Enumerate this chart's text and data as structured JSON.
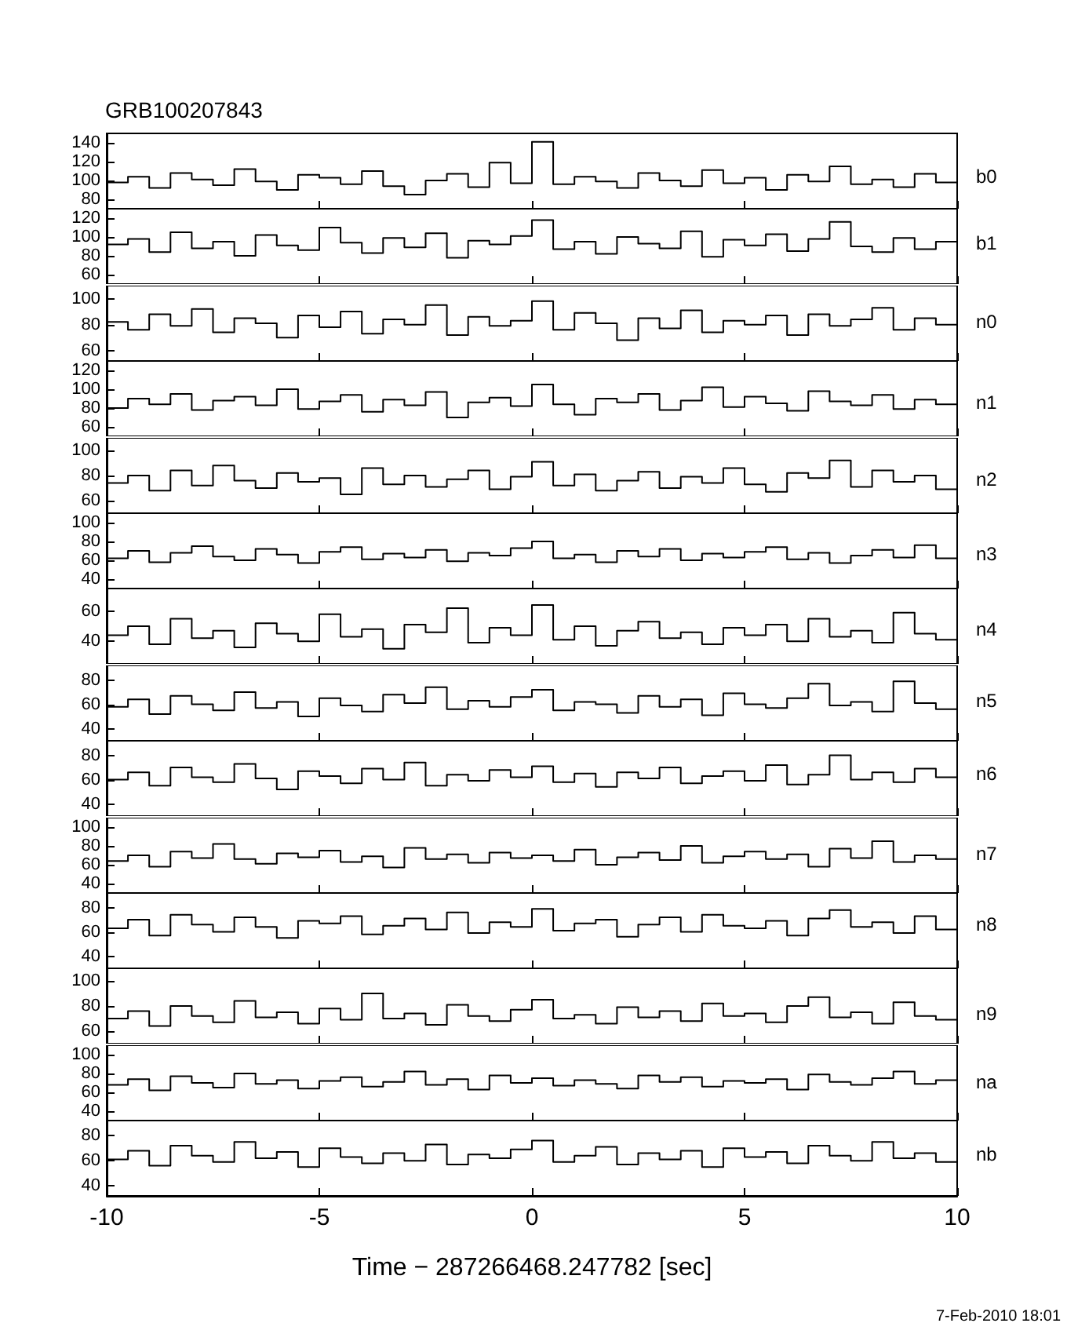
{
  "chart_data": [
    {
      "type": "step",
      "title": "GRB100207843",
      "x": [
        -10,
        -9.5,
        -9,
        -8.5,
        -8,
        -7.5,
        -7,
        -6.5,
        -6,
        -5.5,
        -5,
        -4.5,
        -4,
        -3.5,
        -3,
        -2.5,
        -2,
        -1.5,
        -1,
        -0.5,
        0,
        0.5,
        1,
        1.5,
        2,
        2.5,
        3,
        3.5,
        4,
        4.5,
        5,
        5.5,
        6,
        6.5,
        7,
        7.5,
        8,
        8.5,
        9,
        9.5,
        10
      ],
      "series": [
        {
          "name": "b0",
          "color": "#000000",
          "values": [
            98,
            104,
            92,
            108,
            101,
            95,
            112,
            99,
            90,
            106,
            103,
            96,
            110,
            94,
            85,
            100,
            107,
            93,
            119,
            97,
            141,
            96,
            104,
            99,
            92,
            108,
            100,
            94,
            111,
            97,
            103,
            90,
            106,
            99,
            115,
            96,
            101,
            93,
            107,
            98,
            104
          ]
        }
      ],
      "xlim": [
        -10,
        10
      ],
      "xticks": [
        -10,
        -5,
        0,
        5,
        10
      ],
      "ylim": [
        70,
        150
      ],
      "yticks": [
        80,
        100,
        120,
        140
      ],
      "tick_labels": "y",
      "marker": "none"
    },
    {
      "type": "step",
      "x": [
        -10,
        -9.5,
        -9,
        -8.5,
        -8,
        -7.5,
        -7,
        -6.5,
        -6,
        -5.5,
        -5,
        -4.5,
        -4,
        -3.5,
        -3,
        -2.5,
        -2,
        -1.5,
        -1,
        -0.5,
        0,
        0.5,
        1,
        1.5,
        2,
        2.5,
        3,
        3.5,
        4,
        4.5,
        5,
        5.5,
        6,
        6.5,
        7,
        7.5,
        8,
        8.5,
        9,
        9.5,
        10
      ],
      "series": [
        {
          "name": "b1",
          "color": "#000000",
          "values": [
            92,
            98,
            84,
            105,
            88,
            95,
            80,
            102,
            91,
            86,
            110,
            94,
            83,
            99,
            89,
            104,
            78,
            96,
            92,
            101,
            118,
            87,
            95,
            82,
            100,
            93,
            88,
            106,
            79,
            97,
            91,
            103,
            85,
            98,
            116,
            90,
            84,
            99,
            87,
            95,
            93
          ]
        }
      ],
      "xlim": [
        -10,
        10
      ],
      "xticks": [
        -10,
        -5,
        0,
        5,
        10
      ],
      "ylim": [
        50,
        130
      ],
      "yticks": [
        60,
        80,
        100,
        120
      ],
      "tick_labels": "y",
      "marker": "none"
    },
    {
      "type": "step",
      "x": [
        -10,
        -9.5,
        -9,
        -8.5,
        -8,
        -7.5,
        -7,
        -6.5,
        -6,
        -5.5,
        -5,
        -4.5,
        -4,
        -3.5,
        -3,
        -2.5,
        -2,
        -1.5,
        -1,
        -0.5,
        0,
        0.5,
        1,
        1.5,
        2,
        2.5,
        3,
        3.5,
        4,
        4.5,
        5,
        5.5,
        6,
        6.5,
        7,
        7.5,
        8,
        8.5,
        9,
        9.5,
        10
      ],
      "series": [
        {
          "name": "n0",
          "color": "#000000",
          "values": [
            82,
            76,
            88,
            79,
            92,
            74,
            85,
            81,
            70,
            87,
            78,
            90,
            73,
            84,
            80,
            95,
            72,
            86,
            79,
            83,
            98,
            76,
            89,
            81,
            68,
            85,
            77,
            91,
            74,
            83,
            80,
            87,
            72,
            88,
            79,
            84,
            93,
            76,
            85,
            80,
            82
          ]
        }
      ],
      "xlim": [
        -10,
        10
      ],
      "xticks": [
        -10,
        -5,
        0,
        5,
        10
      ],
      "ylim": [
        52,
        110
      ],
      "yticks": [
        60,
        80,
        100
      ],
      "tick_labels": "y",
      "marker": "none"
    },
    {
      "type": "step",
      "x": [
        -10,
        -9.5,
        -9,
        -8.5,
        -8,
        -7.5,
        -7,
        -6.5,
        -6,
        -5.5,
        -5,
        -4.5,
        -4,
        -3.5,
        -3,
        -2.5,
        -2,
        -1.5,
        -1,
        -0.5,
        0,
        0.5,
        1,
        1.5,
        2,
        2.5,
        3,
        3.5,
        4,
        4.5,
        5,
        5.5,
        6,
        6.5,
        7,
        7.5,
        8,
        8.5,
        9,
        9.5,
        10
      ],
      "series": [
        {
          "name": "n1",
          "color": "#000000",
          "values": [
            80,
            90,
            84,
            95,
            78,
            88,
            92,
            83,
            100,
            79,
            87,
            94,
            76,
            89,
            83,
            97,
            70,
            86,
            91,
            82,
            105,
            84,
            73,
            90,
            86,
            95,
            78,
            88,
            102,
            81,
            92,
            85,
            77,
            98,
            87,
            83,
            94,
            79,
            89,
            84,
            86
          ]
        }
      ],
      "xlim": [
        -10,
        10
      ],
      "xticks": [
        -10,
        -5,
        0,
        5,
        10
      ],
      "ylim": [
        50,
        130
      ],
      "yticks": [
        60,
        80,
        100,
        120
      ],
      "tick_labels": "y",
      "marker": "none"
    },
    {
      "type": "step",
      "x": [
        -10,
        -9.5,
        -9,
        -8.5,
        -8,
        -7.5,
        -7,
        -6.5,
        -6,
        -5.5,
        -5,
        -4.5,
        -4,
        -3.5,
        -3,
        -2.5,
        -2,
        -1.5,
        -1,
        -0.5,
        0,
        0.5,
        1,
        1.5,
        2,
        2.5,
        3,
        3.5,
        4,
        4.5,
        5,
        5.5,
        6,
        6.5,
        7,
        7.5,
        8,
        8.5,
        9,
        9.5,
        10
      ],
      "series": [
        {
          "name": "n2",
          "color": "#000000",
          "values": [
            74,
            80,
            68,
            84,
            72,
            88,
            76,
            70,
            82,
            75,
            78,
            65,
            86,
            73,
            80,
            71,
            77,
            84,
            69,
            79,
            91,
            72,
            81,
            68,
            76,
            83,
            70,
            79,
            74,
            86,
            73,
            67,
            82,
            78,
            92,
            71,
            84,
            75,
            80,
            69,
            77
          ]
        }
      ],
      "xlim": [
        -10,
        10
      ],
      "xticks": [
        -10,
        -5,
        0,
        5,
        10
      ],
      "ylim": [
        50,
        110
      ],
      "yticks": [
        60,
        80,
        100
      ],
      "tick_labels": "y",
      "marker": "none"
    },
    {
      "type": "step",
      "x": [
        -10,
        -9.5,
        -9,
        -8.5,
        -8,
        -7.5,
        -7,
        -6.5,
        -6,
        -5.5,
        -5,
        -4.5,
        -4,
        -3.5,
        -3,
        -2.5,
        -2,
        -1.5,
        -1,
        -0.5,
        0,
        0.5,
        1,
        1.5,
        2,
        2.5,
        3,
        3.5,
        4,
        4.5,
        5,
        5.5,
        6,
        6.5,
        7,
        7.5,
        8,
        8.5,
        9,
        9.5,
        10
      ],
      "series": [
        {
          "name": "n3",
          "color": "#000000",
          "values": [
            62,
            70,
            58,
            68,
            75,
            64,
            60,
            72,
            66,
            57,
            69,
            74,
            61,
            67,
            63,
            71,
            59,
            68,
            65,
            73,
            80,
            62,
            66,
            58,
            70,
            64,
            72,
            60,
            67,
            63,
            69,
            74,
            61,
            68,
            57,
            65,
            71,
            63,
            76,
            62,
            67
          ]
        }
      ],
      "xlim": [
        -10,
        10
      ],
      "xticks": [
        -10,
        -5,
        0,
        5,
        10
      ],
      "ylim": [
        30,
        110
      ],
      "yticks": [
        40,
        60,
        80,
        100
      ],
      "tick_labels": "y",
      "marker": "none"
    },
    {
      "type": "step",
      "x": [
        -10,
        -9.5,
        -9,
        -8.5,
        -8,
        -7.5,
        -7,
        -6.5,
        -6,
        -5.5,
        -5,
        -4.5,
        -4,
        -3.5,
        -3,
        -2.5,
        -2,
        -1.5,
        -1,
        -0.5,
        0,
        0.5,
        1,
        1.5,
        2,
        2.5,
        3,
        3.5,
        4,
        4.5,
        5,
        5.5,
        6,
        6.5,
        7,
        7.5,
        8,
        8.5,
        9,
        9.5,
        10
      ],
      "series": [
        {
          "name": "n4",
          "color": "#000000",
          "values": [
            44,
            50,
            38,
            55,
            42,
            47,
            36,
            52,
            45,
            40,
            58,
            43,
            48,
            35,
            51,
            46,
            62,
            39,
            49,
            44,
            64,
            41,
            50,
            37,
            47,
            53,
            42,
            46,
            38,
            49,
            44,
            51,
            40,
            55,
            43,
            47,
            39,
            59,
            45,
            41,
            48
          ]
        }
      ],
      "xlim": [
        -10,
        10
      ],
      "xticks": [
        -10,
        -5,
        0,
        5,
        10
      ],
      "ylim": [
        25,
        75
      ],
      "yticks": [
        40,
        60
      ],
      "tick_labels": "y",
      "marker": "none"
    },
    {
      "type": "step",
      "x": [
        -10,
        -9.5,
        -9,
        -8.5,
        -8,
        -7.5,
        -7,
        -6.5,
        -6,
        -5.5,
        -5,
        -4.5,
        -4,
        -3.5,
        -3,
        -2.5,
        -2,
        -1.5,
        -1,
        -0.5,
        0,
        0.5,
        1,
        1.5,
        2,
        2.5,
        3,
        3.5,
        4,
        4.5,
        5,
        5.5,
        6,
        6.5,
        7,
        7.5,
        8,
        8.5,
        9,
        9.5,
        10
      ],
      "series": [
        {
          "name": "n5",
          "color": "#000000",
          "values": [
            58,
            64,
            52,
            67,
            60,
            55,
            70,
            57,
            62,
            50,
            65,
            59,
            54,
            68,
            61,
            74,
            56,
            63,
            58,
            66,
            72,
            55,
            62,
            60,
            53,
            67,
            58,
            64,
            51,
            69,
            60,
            57,
            65,
            77,
            59,
            62,
            54,
            79,
            61,
            56,
            63
          ]
        }
      ],
      "xlim": [
        -10,
        10
      ],
      "xticks": [
        -10,
        -5,
        0,
        5,
        10
      ],
      "ylim": [
        30,
        92
      ],
      "yticks": [
        40,
        60,
        80
      ],
      "tick_labels": "y",
      "marker": "none"
    },
    {
      "type": "step",
      "x": [
        -10,
        -9.5,
        -9,
        -8.5,
        -8,
        -7.5,
        -7,
        -6.5,
        -6,
        -5.5,
        -5,
        -4.5,
        -4,
        -3.5,
        -3,
        -2.5,
        -2,
        -1.5,
        -1,
        -0.5,
        0,
        0.5,
        1,
        1.5,
        2,
        2.5,
        3,
        3.5,
        4,
        4.5,
        5,
        5.5,
        6,
        6.5,
        7,
        7.5,
        8,
        8.5,
        9,
        9.5,
        10
      ],
      "series": [
        {
          "name": "n6",
          "color": "#000000",
          "values": [
            60,
            66,
            55,
            70,
            62,
            58,
            73,
            61,
            52,
            67,
            63,
            57,
            69,
            60,
            74,
            55,
            64,
            59,
            68,
            62,
            71,
            58,
            65,
            54,
            66,
            61,
            70,
            57,
            63,
            67,
            59,
            72,
            56,
            64,
            80,
            60,
            66,
            58,
            69,
            62,
            65
          ]
        }
      ],
      "xlim": [
        -10,
        10
      ],
      "xticks": [
        -10,
        -5,
        0,
        5,
        10
      ],
      "ylim": [
        30,
        92
      ],
      "yticks": [
        40,
        60,
        80
      ],
      "tick_labels": "y",
      "marker": "none"
    },
    {
      "type": "step",
      "x": [
        -10,
        -9.5,
        -9,
        -8.5,
        -8,
        -7.5,
        -7,
        -6.5,
        -6,
        -5.5,
        -5,
        -4.5,
        -4,
        -3.5,
        -3,
        -2.5,
        -2,
        -1.5,
        -1,
        -0.5,
        0,
        0.5,
        1,
        1.5,
        2,
        2.5,
        3,
        3.5,
        4,
        4.5,
        5,
        5.5,
        6,
        6.5,
        7,
        7.5,
        8,
        8.5,
        9,
        9.5,
        10
      ],
      "series": [
        {
          "name": "n7",
          "color": "#000000",
          "values": [
            64,
            70,
            58,
            74,
            67,
            82,
            66,
            61,
            72,
            68,
            75,
            63,
            69,
            57,
            78,
            66,
            71,
            62,
            73,
            67,
            70,
            64,
            76,
            60,
            68,
            73,
            65,
            80,
            62,
            69,
            74,
            66,
            71,
            58,
            77,
            67,
            85,
            63,
            70,
            66,
            72
          ]
        }
      ],
      "xlim": [
        -10,
        10
      ],
      "xticks": [
        -10,
        -5,
        0,
        5,
        10
      ],
      "ylim": [
        30,
        110
      ],
      "yticks": [
        40,
        60,
        80,
        100
      ],
      "tick_labels": "y",
      "marker": "none"
    },
    {
      "type": "step",
      "x": [
        -10,
        -9.5,
        -9,
        -8.5,
        -8,
        -7.5,
        -7,
        -6.5,
        -6,
        -5.5,
        -5,
        -4.5,
        -4,
        -3.5,
        -3,
        -2.5,
        -2,
        -1.5,
        -1,
        -0.5,
        0,
        0.5,
        1,
        1.5,
        2,
        2.5,
        3,
        3.5,
        4,
        4.5,
        5,
        5.5,
        6,
        6.5,
        7,
        7.5,
        8,
        8.5,
        9,
        9.5,
        10
      ],
      "series": [
        {
          "name": "n8",
          "color": "#000000",
          "values": [
            63,
            70,
            57,
            74,
            66,
            60,
            72,
            64,
            55,
            69,
            67,
            73,
            58,
            65,
            71,
            62,
            76,
            59,
            68,
            64,
            79,
            61,
            67,
            70,
            56,
            66,
            72,
            60,
            74,
            65,
            63,
            69,
            57,
            71,
            78,
            64,
            68,
            59,
            73,
            62,
            66
          ]
        }
      ],
      "xlim": [
        -10,
        10
      ],
      "xticks": [
        -10,
        -5,
        0,
        5,
        10
      ],
      "ylim": [
        30,
        92
      ],
      "yticks": [
        40,
        60,
        80
      ],
      "tick_labels": "y",
      "marker": "none"
    },
    {
      "type": "step",
      "x": [
        -10,
        -9.5,
        -9,
        -8.5,
        -8,
        -7.5,
        -7,
        -6.5,
        -6,
        -5.5,
        -5,
        -4.5,
        -4,
        -3.5,
        -3,
        -2.5,
        -2,
        -1.5,
        -1,
        -0.5,
        0,
        0.5,
        1,
        1.5,
        2,
        2.5,
        3,
        3.5,
        4,
        4.5,
        5,
        5.5,
        6,
        6.5,
        7,
        7.5,
        8,
        8.5,
        9,
        9.5,
        10
      ],
      "series": [
        {
          "name": "n9",
          "color": "#000000",
          "values": [
            70,
            76,
            64,
            80,
            72,
            67,
            84,
            71,
            75,
            66,
            78,
            69,
            90,
            70,
            74,
            65,
            81,
            72,
            68,
            77,
            85,
            70,
            73,
            66,
            79,
            71,
            76,
            68,
            82,
            72,
            74,
            67,
            80,
            87,
            71,
            75,
            66,
            83,
            72,
            69,
            74
          ]
        }
      ],
      "xlim": [
        -10,
        10
      ],
      "xticks": [
        -10,
        -5,
        0,
        5,
        10
      ],
      "ylim": [
        50,
        110
      ],
      "yticks": [
        60,
        80,
        100
      ],
      "tick_labels": "y",
      "marker": "none"
    },
    {
      "type": "step",
      "x": [
        -10,
        -9.5,
        -9,
        -8.5,
        -8,
        -7.5,
        -7,
        -6.5,
        -6,
        -5.5,
        -5,
        -4.5,
        -4,
        -3.5,
        -3,
        -2.5,
        -2,
        -1.5,
        -1,
        -0.5,
        0,
        0.5,
        1,
        1.5,
        2,
        2.5,
        3,
        3.5,
        4,
        4.5,
        5,
        5.5,
        6,
        6.5,
        7,
        7.5,
        8,
        8.5,
        9,
        9.5,
        10
      ],
      "series": [
        {
          "name": "na",
          "color": "#000000",
          "values": [
            68,
            74,
            62,
            77,
            70,
            65,
            80,
            69,
            73,
            64,
            72,
            76,
            66,
            71,
            82,
            68,
            74,
            63,
            78,
            70,
            75,
            67,
            73,
            69,
            64,
            78,
            71,
            76,
            66,
            72,
            70,
            74,
            63,
            79,
            71,
            68,
            75,
            82,
            69,
            73,
            71
          ]
        }
      ],
      "xlim": [
        -10,
        10
      ],
      "xticks": [
        -10,
        -5,
        0,
        5,
        10
      ],
      "ylim": [
        30,
        110
      ],
      "yticks": [
        40,
        60,
        80,
        100
      ],
      "tick_labels": "y",
      "marker": "none"
    },
    {
      "type": "step",
      "xlabel": "Time − 287266468.247782 [sec]",
      "annotations": [
        "7-Feb-2010 18:01"
      ],
      "x": [
        -10,
        -9.5,
        -9,
        -8.5,
        -8,
        -7.5,
        -7,
        -6.5,
        -6,
        -5.5,
        -5,
        -4.5,
        -4,
        -3.5,
        -3,
        -2.5,
        -2,
        -1.5,
        -1,
        -0.5,
        0,
        0.5,
        1,
        1.5,
        2,
        2.5,
        3,
        3.5,
        4,
        4.5,
        5,
        5.5,
        6,
        6.5,
        7,
        7.5,
        8,
        8.5,
        9,
        9.5,
        10
      ],
      "series": [
        {
          "name": "nb",
          "color": "#000000",
          "values": [
            61,
            68,
            56,
            72,
            64,
            59,
            75,
            62,
            67,
            55,
            70,
            63,
            58,
            66,
            60,
            73,
            57,
            65,
            62,
            69,
            76,
            59,
            64,
            71,
            57,
            66,
            61,
            68,
            55,
            70,
            63,
            67,
            58,
            72,
            64,
            60,
            75,
            62,
            66,
            59,
            65
          ]
        }
      ],
      "xlim": [
        -10,
        10
      ],
      "xticks": [
        -10,
        -5,
        0,
        5,
        10
      ],
      "ylim": [
        32,
        92
      ],
      "yticks": [
        40,
        60,
        80
      ],
      "marker": "none"
    }
  ]
}
